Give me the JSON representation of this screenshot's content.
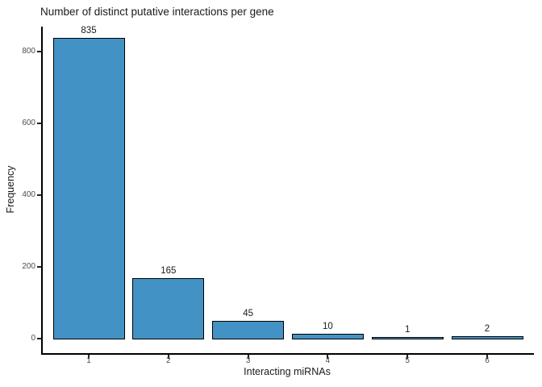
{
  "chart_data": {
    "type": "bar",
    "title": "Number of distinct putative interactions per gene",
    "xlabel": "Interacting miRNAs",
    "ylabel": "Frequency",
    "categories": [
      "1",
      "2",
      "3",
      "4",
      "5",
      "6"
    ],
    "values": [
      835,
      165,
      45,
      10,
      1,
      2
    ],
    "bar_labels": [
      "835",
      "165",
      "45",
      "10",
      "1",
      "2"
    ],
    "yticks": [
      0,
      200,
      400,
      600,
      800
    ],
    "ylim": [
      -46,
      870
    ],
    "grid": false,
    "legend": "none",
    "colors": {
      "bar_fill": "#4292c6",
      "bar_edge": "#000000",
      "axis_line": "#000000",
      "tick_label": "#4d4d4d",
      "tick_mark": "#222222",
      "text": "#1a1a1a"
    }
  }
}
